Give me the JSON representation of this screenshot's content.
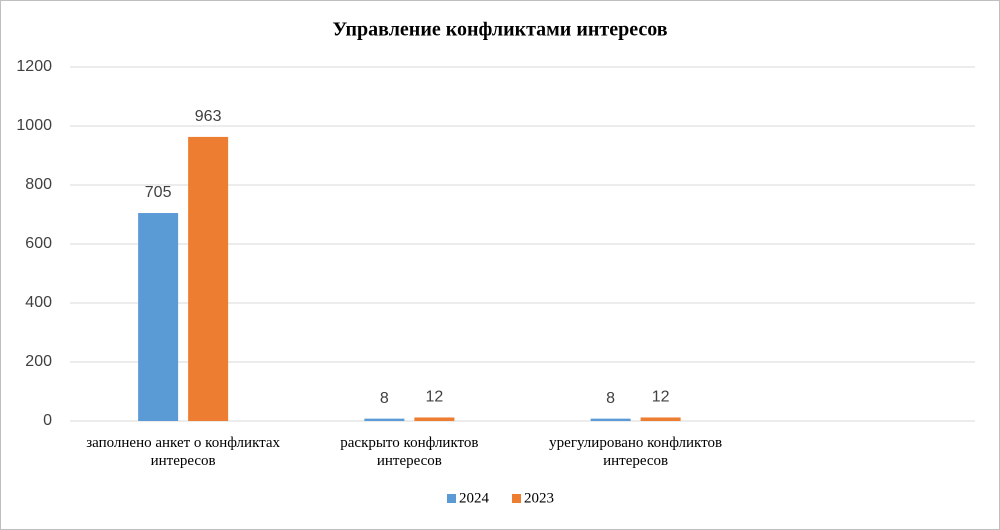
{
  "chart_data": {
    "type": "bar",
    "title": "Управление конфликтами интересов",
    "categories": [
      "заполнено анкет о конфликтах интересов",
      "раскрыто конфликтов интересов",
      "урегулировано конфликтов интересов",
      null
    ],
    "series": [
      {
        "name": "2024",
        "color": "#5b9bd5",
        "values": [
          705,
          8,
          8,
          null
        ]
      },
      {
        "name": "2023",
        "color": "#ed7d31",
        "values": [
          963,
          12,
          12,
          null
        ]
      }
    ],
    "ylim": [
      0,
      1200
    ],
    "yticks": [
      0,
      200,
      400,
      600,
      800,
      1000,
      1200
    ],
    "grid": true,
    "legend": "bottom"
  }
}
